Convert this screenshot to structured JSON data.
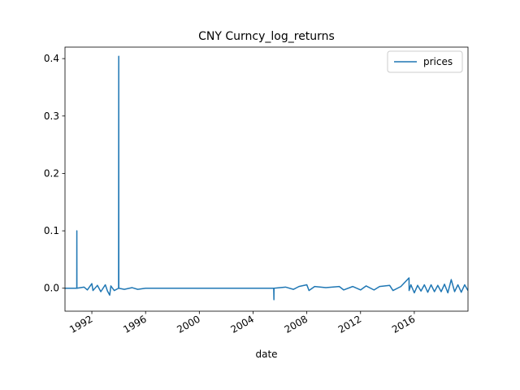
{
  "chart_data": {
    "type": "line",
    "title": "CNY Curncy_log_returns",
    "xlabel": "date",
    "ylabel": "",
    "legend": {
      "position": "top-right",
      "entries": [
        "prices"
      ]
    },
    "grid": false,
    "xlim": [
      "1990-01-01",
      "2019-12-31"
    ],
    "ylim": [
      -0.04,
      0.42
    ],
    "x_ticks": [
      "1992",
      "1996",
      "2000",
      "2004",
      "2008",
      "2012",
      "2016"
    ],
    "y_ticks": [
      "0.0",
      "0.1",
      "0.2",
      "0.3",
      "0.4"
    ],
    "series": [
      {
        "name": "prices",
        "color": "#1f77b4",
        "points": [
          {
            "x": "1990-01-01",
            "y": 0.0
          },
          {
            "x": "1990-06-15",
            "y": 0.0
          },
          {
            "x": "1990-11-17",
            "y": 0.0
          },
          {
            "x": "1990-11-19",
            "y": 0.1
          },
          {
            "x": "1990-11-21",
            "y": 0.0
          },
          {
            "x": "1991-06-01",
            "y": 0.002
          },
          {
            "x": "1991-09-01",
            "y": -0.003
          },
          {
            "x": "1992-01-01",
            "y": 0.008
          },
          {
            "x": "1992-02-01",
            "y": -0.004
          },
          {
            "x": "1992-06-01",
            "y": 0.005
          },
          {
            "x": "1992-09-01",
            "y": -0.006
          },
          {
            "x": "1993-01-01",
            "y": 0.006
          },
          {
            "x": "1993-03-01",
            "y": -0.005
          },
          {
            "x": "1993-05-01",
            "y": -0.012
          },
          {
            "x": "1993-06-01",
            "y": 0.004
          },
          {
            "x": "1993-09-01",
            "y": -0.004
          },
          {
            "x": "1993-12-28",
            "y": 0.0
          },
          {
            "x": "1994-01-01",
            "y": 0.404
          },
          {
            "x": "1994-01-03",
            "y": 0.0
          },
          {
            "x": "1994-06-01",
            "y": -0.002
          },
          {
            "x": "1995-01-01",
            "y": 0.001
          },
          {
            "x": "1995-06-01",
            "y": -0.002
          },
          {
            "x": "1996-01-01",
            "y": 0.0
          },
          {
            "x": "2000-01-01",
            "y": 0.0
          },
          {
            "x": "2005-07-15",
            "y": 0.0
          },
          {
            "x": "2005-07-21",
            "y": -0.02
          },
          {
            "x": "2005-07-23",
            "y": 0.0
          },
          {
            "x": "2006-06-01",
            "y": 0.002
          },
          {
            "x": "2007-01-01",
            "y": -0.002
          },
          {
            "x": "2007-06-01",
            "y": 0.003
          },
          {
            "x": "2008-01-01",
            "y": 0.006
          },
          {
            "x": "2008-03-01",
            "y": -0.004
          },
          {
            "x": "2008-08-01",
            "y": 0.003
          },
          {
            "x": "2009-06-01",
            "y": 0.001
          },
          {
            "x": "2010-06-01",
            "y": 0.003
          },
          {
            "x": "2010-10-01",
            "y": -0.003
          },
          {
            "x": "2011-06-01",
            "y": 0.003
          },
          {
            "x": "2012-01-01",
            "y": -0.003
          },
          {
            "x": "2012-06-01",
            "y": 0.004
          },
          {
            "x": "2013-01-01",
            "y": -0.003
          },
          {
            "x": "2013-06-01",
            "y": 0.003
          },
          {
            "x": "2014-03-01",
            "y": 0.005
          },
          {
            "x": "2014-06-01",
            "y": -0.004
          },
          {
            "x": "2015-01-01",
            "y": 0.003
          },
          {
            "x": "2015-08-11",
            "y": 0.018
          },
          {
            "x": "2015-08-13",
            "y": -0.004
          },
          {
            "x": "2015-10-01",
            "y": 0.006
          },
          {
            "x": "2016-01-01",
            "y": -0.008
          },
          {
            "x": "2016-04-01",
            "y": 0.005
          },
          {
            "x": "2016-07-01",
            "y": -0.005
          },
          {
            "x": "2016-10-01",
            "y": 0.006
          },
          {
            "x": "2017-01-01",
            "y": -0.007
          },
          {
            "x": "2017-04-01",
            "y": 0.006
          },
          {
            "x": "2017-07-01",
            "y": -0.006
          },
          {
            "x": "2017-10-01",
            "y": 0.005
          },
          {
            "x": "2018-01-01",
            "y": -0.006
          },
          {
            "x": "2018-04-01",
            "y": 0.007
          },
          {
            "x": "2018-07-01",
            "y": -0.008
          },
          {
            "x": "2018-10-01",
            "y": 0.015
          },
          {
            "x": "2019-01-01",
            "y": -0.006
          },
          {
            "x": "2019-04-01",
            "y": 0.006
          },
          {
            "x": "2019-07-01",
            "y": -0.007
          },
          {
            "x": "2019-10-01",
            "y": 0.006
          },
          {
            "x": "2019-12-31",
            "y": -0.004
          }
        ]
      }
    ]
  }
}
